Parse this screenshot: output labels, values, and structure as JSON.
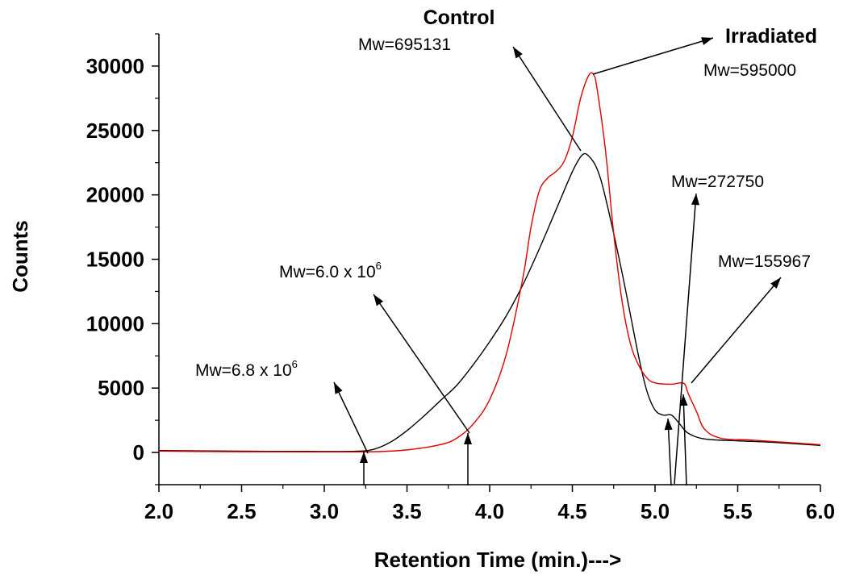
{
  "chart_data": {
    "type": "line",
    "xlabel": "Retention Time (min.)--->",
    "ylabel": "Counts",
    "xlim": [
      2.0,
      6.0
    ],
    "ylim": [
      -2500,
      32500
    ],
    "x_ticks": [
      "2.0",
      "2.5",
      "3.0",
      "3.5",
      "4.0",
      "4.5",
      "5.0",
      "5.5",
      "6.0"
    ],
    "y_ticks": [
      "0",
      "5000",
      "10000",
      "15000",
      "20000",
      "25000",
      "30000"
    ],
    "series": [
      {
        "name": "Control",
        "color": "#000000",
        "points": [
          [
            2.0,
            150
          ],
          [
            2.5,
            100
          ],
          [
            3.0,
            80
          ],
          [
            3.2,
            100
          ],
          [
            3.3,
            250
          ],
          [
            3.4,
            800
          ],
          [
            3.5,
            1700
          ],
          [
            3.6,
            2800
          ],
          [
            3.7,
            4000
          ],
          [
            3.8,
            5200
          ],
          [
            3.9,
            6800
          ],
          [
            4.0,
            8600
          ],
          [
            4.1,
            10600
          ],
          [
            4.2,
            13000
          ],
          [
            4.3,
            15800
          ],
          [
            4.4,
            18800
          ],
          [
            4.5,
            21800
          ],
          [
            4.56,
            23100
          ],
          [
            4.6,
            23000
          ],
          [
            4.65,
            22000
          ],
          [
            4.7,
            19800
          ],
          [
            4.8,
            14000
          ],
          [
            4.9,
            7500
          ],
          [
            4.95,
            4800
          ],
          [
            5.0,
            3300
          ],
          [
            5.05,
            2900
          ],
          [
            5.1,
            2900
          ],
          [
            5.15,
            2200
          ],
          [
            5.2,
            1500
          ],
          [
            5.3,
            1050
          ],
          [
            5.5,
            900
          ],
          [
            5.7,
            800
          ],
          [
            6.0,
            550
          ]
        ]
      },
      {
        "name": "Irradiated",
        "color": "#e00000",
        "points": [
          [
            2.0,
            100
          ],
          [
            2.5,
            60
          ],
          [
            3.0,
            50
          ],
          [
            3.3,
            60
          ],
          [
            3.5,
            200
          ],
          [
            3.7,
            600
          ],
          [
            3.8,
            1100
          ],
          [
            3.9,
            2200
          ],
          [
            4.0,
            4100
          ],
          [
            4.1,
            7600
          ],
          [
            4.2,
            13500
          ],
          [
            4.25,
            17500
          ],
          [
            4.3,
            20300
          ],
          [
            4.35,
            21300
          ],
          [
            4.4,
            21800
          ],
          [
            4.45,
            22600
          ],
          [
            4.5,
            24500
          ],
          [
            4.55,
            27500
          ],
          [
            4.6,
            29300
          ],
          [
            4.63,
            29300
          ],
          [
            4.65,
            28200
          ],
          [
            4.7,
            23500
          ],
          [
            4.75,
            17000
          ],
          [
            4.8,
            11800
          ],
          [
            4.85,
            8500
          ],
          [
            4.9,
            6800
          ],
          [
            4.95,
            5800
          ],
          [
            5.0,
            5400
          ],
          [
            5.1,
            5300
          ],
          [
            5.15,
            5400
          ],
          [
            5.18,
            5300
          ],
          [
            5.2,
            4600
          ],
          [
            5.25,
            3200
          ],
          [
            5.3,
            1800
          ],
          [
            5.4,
            1100
          ],
          [
            5.6,
            950
          ],
          [
            6.0,
            600
          ]
        ]
      }
    ]
  },
  "labels": {
    "control": "Control",
    "irradiated": "Irradiated",
    "mw_control": "Mw=695131",
    "mw_irradiated": "Mw=595000",
    "mw_272750": "Mw=272750",
    "mw_155967": "Mw=155967",
    "mw_6_0_base": "Mw=6.0 x 10",
    "mw_6_0_exp": "6",
    "mw_6_8_base": "Mw=6.8 x 10",
    "mw_6_8_exp": "6"
  }
}
